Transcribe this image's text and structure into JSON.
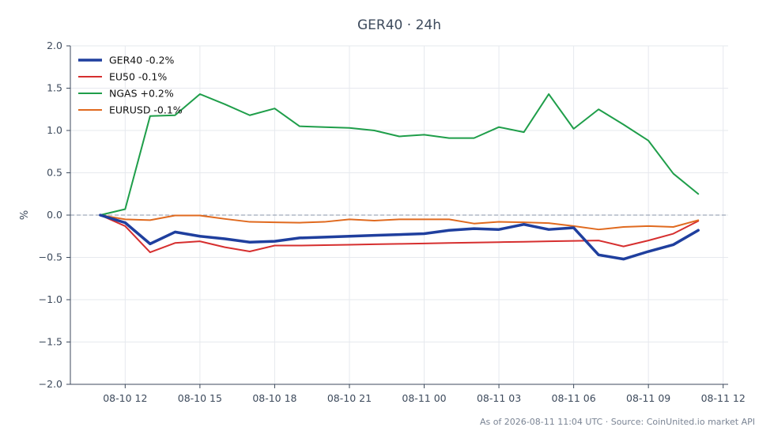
{
  "chart_data": {
    "type": "line",
    "title": "GER40 · 24h",
    "ylabel": "%",
    "xlabel": "",
    "ylim": [
      -2.0,
      2.0
    ],
    "yticks": [
      2.0,
      1.5,
      1.0,
      0.5,
      0.0,
      -0.5,
      -1.0,
      -1.5,
      -2.0
    ],
    "ytick_labels": [
      "2.0",
      "1.5",
      "1.0",
      "0.5",
      "0.0",
      "−0.5",
      "−1.0",
      "−1.5",
      "−2.0"
    ],
    "xlim": [
      -1.2,
      25.2
    ],
    "xticks": [
      1,
      4,
      7,
      10,
      13,
      16,
      19,
      22,
      25
    ],
    "xtick_labels": [
      "08-10 12",
      "08-10 15",
      "08-10 18",
      "08-10 21",
      "08-11 00",
      "08-11 03",
      "08-11 06",
      "08-11 09",
      "08-11 12"
    ],
    "x_hours": [
      0,
      1,
      2,
      3,
      4,
      5,
      6,
      7,
      8,
      9,
      10,
      11,
      12,
      13,
      14,
      15,
      16,
      17,
      18,
      19,
      20,
      21,
      22,
      23,
      24
    ],
    "grid": true,
    "zero_line": true,
    "legend_position": "top-left",
    "series": [
      {
        "name": "GER40 -0.2%",
        "color": "#1f3f9e",
        "width": 3.5,
        "values": [
          0.0,
          -0.09,
          -0.34,
          -0.2,
          -0.25,
          -0.28,
          -0.32,
          -0.31,
          -0.27,
          -0.26,
          -0.25,
          -0.24,
          -0.23,
          -0.22,
          -0.18,
          -0.16,
          -0.17,
          -0.11,
          -0.17,
          -0.15,
          -0.47,
          -0.52,
          -0.43,
          -0.35,
          -0.18
        ]
      },
      {
        "name": "EU50 -0.1%",
        "color": "#d62f2f",
        "width": 2,
        "values": [
          0.0,
          -0.13,
          -0.44,
          -0.33,
          -0.31,
          -0.38,
          -0.43,
          -0.36,
          -0.36,
          -0.355,
          -0.35,
          -0.345,
          -0.34,
          -0.335,
          -0.33,
          -0.325,
          -0.32,
          -0.315,
          -0.31,
          -0.305,
          -0.3,
          -0.37,
          -0.3,
          -0.22,
          -0.07
        ]
      },
      {
        "name": "NGAS +0.2%",
        "color": "#1f9e4a",
        "width": 2,
        "values": [
          0.0,
          0.07,
          1.17,
          1.18,
          1.43,
          1.31,
          1.18,
          1.26,
          1.05,
          1.04,
          1.03,
          1.0,
          0.93,
          0.95,
          0.91,
          0.91,
          1.04,
          0.98,
          1.43,
          1.02,
          1.25,
          1.07,
          0.88,
          0.49,
          0.25
        ]
      },
      {
        "name": "EURUSD -0.1%",
        "color": "#e06a1f",
        "width": 2,
        "values": [
          0.0,
          -0.05,
          -0.06,
          -0.005,
          -0.005,
          -0.045,
          -0.08,
          -0.085,
          -0.09,
          -0.08,
          -0.05,
          -0.065,
          -0.05,
          -0.05,
          -0.05,
          -0.1,
          -0.08,
          -0.085,
          -0.095,
          -0.13,
          -0.17,
          -0.14,
          -0.13,
          -0.14,
          -0.06
        ]
      }
    ]
  },
  "footer": "As of 2026-08-11 11:04 UTC · Source: CoinUnited.io market API",
  "colors": {
    "axis": "#3d4a5c",
    "grid": "#e6e9ee",
    "zero_line": "#8a94aa"
  }
}
